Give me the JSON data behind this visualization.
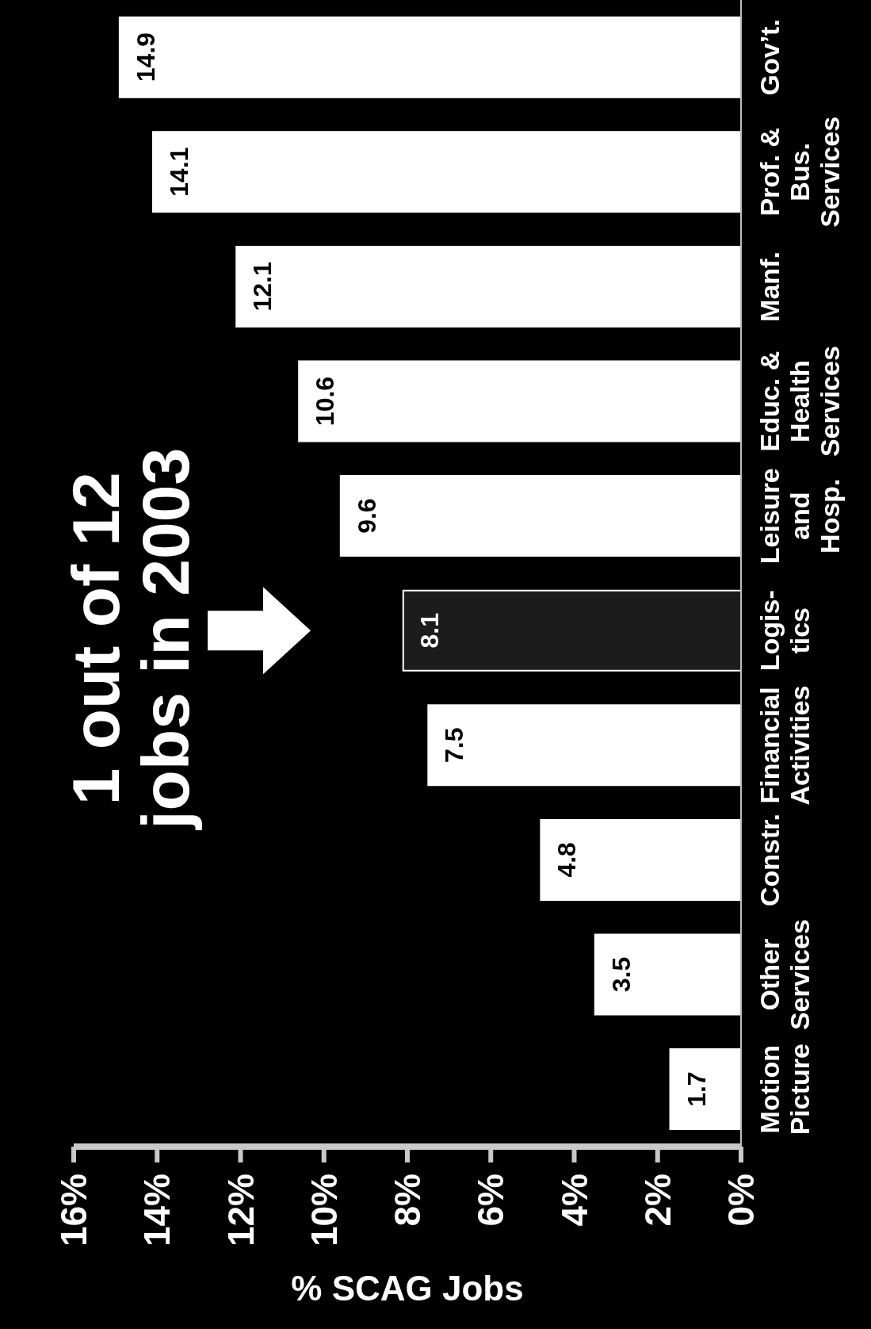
{
  "chart_data": {
    "type": "bar",
    "orientation": "horizontal",
    "title": "1 out of 12\njobs in 2003",
    "xlabel": "% SCAG Jobs",
    "categories": [
      "Gov’t.",
      "Prof. &\nBus.\nServices",
      "Manf.",
      "Educ. &\nHealth\nServices",
      "Leisure\nand\nHosp.",
      "Logis-\ntics",
      "Financial\nActivities",
      "Constr.",
      "Other\nServices",
      "Motion\nPicture"
    ],
    "values": [
      14.9,
      14.1,
      12.1,
      10.6,
      9.6,
      8.1,
      7.5,
      4.8,
      3.5,
      1.7
    ],
    "colors": [
      "#ffffff",
      "#ffffff",
      "#ffffff",
      "#ffffff",
      "#ffffff",
      "#1c1c1c",
      "#ffffff",
      "#ffffff",
      "#ffffff",
      "#ffffff"
    ],
    "xlim": [
      16,
      0
    ],
    "xticks": [
      {
        "value": 16,
        "label": "16%"
      },
      {
        "value": 14,
        "label": "14%"
      },
      {
        "value": 12,
        "label": "12%"
      },
      {
        "value": 10,
        "label": "10%"
      },
      {
        "value": 8,
        "label": "8%"
      },
      {
        "value": 6,
        "label": "6%"
      },
      {
        "value": 4,
        "label": "4%"
      },
      {
        "value": 2,
        "label": "2%"
      },
      {
        "value": 0,
        "label": "0%"
      }
    ],
    "data_labels": true
  }
}
